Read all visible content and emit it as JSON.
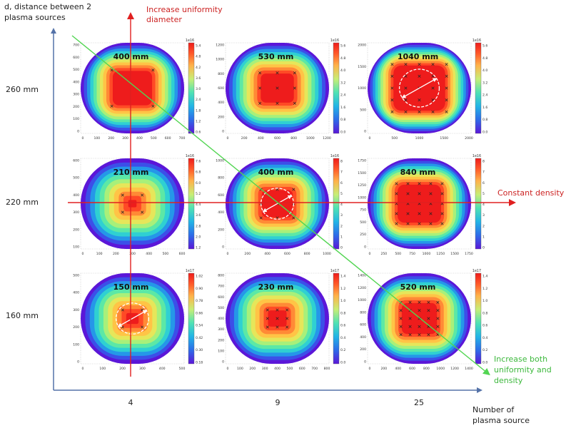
{
  "chart_data": {
    "type": "heatmap",
    "title": "",
    "y_axis_title": "d, distance between 2 plasma sources",
    "y_axis_title_lines": [
      "d, distance between 2",
      "plasma sources"
    ],
    "x_axis_title": "Number of plasma source",
    "x_axis_title_lines": [
      "Number of",
      "plasma source"
    ],
    "row_labels": [
      "260 mm",
      "220 mm",
      "160 mm"
    ],
    "col_labels": [
      "4",
      "9",
      "25"
    ],
    "annotations": {
      "vertical": [
        "Increase uniformity",
        "diameter"
      ],
      "horizontal": "Constant density",
      "diagonal": [
        "Increase both",
        "uniformity and",
        "density"
      ]
    },
    "colors": {
      "axis_blue": "#5472a8",
      "arrow_red": "#e02020",
      "arrow_green": "#52d552",
      "label_red": "#cc2222",
      "label_green": "#3cb83c"
    },
    "panels": [
      {
        "row": 0,
        "col": 0,
        "n_sources": 4,
        "d": "260 mm",
        "uniformity_diameter": "400 mm",
        "axis_max": 700,
        "x_ticks": [
          "0",
          "100",
          "200",
          "300",
          "400",
          "500",
          "600",
          "700"
        ],
        "y_ticks": [
          "0",
          "100",
          "200",
          "300",
          "400",
          "500",
          "600",
          "700"
        ],
        "cbar_exp": "1e16",
        "cbar_ticks": [
          "0.6",
          "1.2",
          "1.8",
          "2.4",
          "3.0",
          "3.6",
          "4.2",
          "4.8",
          "5.4"
        ],
        "dashed_circle": false
      },
      {
        "row": 0,
        "col": 1,
        "n_sources": 9,
        "d": "260 mm",
        "uniformity_diameter": "530 mm",
        "axis_max": 1200,
        "x_ticks": [
          "0",
          "200",
          "400",
          "600",
          "800",
          "1000",
          "1200"
        ],
        "y_ticks": [
          "0",
          "200",
          "400",
          "600",
          "800",
          "1000",
          "1200"
        ],
        "cbar_exp": "1e16",
        "cbar_ticks": [
          "0.0",
          "0.8",
          "1.6",
          "2.4",
          "3.2",
          "4.0",
          "4.8",
          "5.6"
        ],
        "dashed_circle": false
      },
      {
        "row": 0,
        "col": 2,
        "n_sources": 25,
        "d": "260 mm",
        "uniformity_diameter": "1040 mm",
        "axis_max": 2000,
        "x_ticks": [
          "0",
          "500",
          "1000",
          "1500",
          "2000"
        ],
        "y_ticks": [
          "0",
          "500",
          "1000",
          "1500",
          "2000"
        ],
        "cbar_exp": "1e16",
        "cbar_ticks": [
          "0.0",
          "0.8",
          "1.6",
          "2.4",
          "3.2",
          "4.0",
          "4.8",
          "5.6"
        ],
        "dashed_circle": true
      },
      {
        "row": 1,
        "col": 0,
        "n_sources": 4,
        "d": "220 mm",
        "uniformity_diameter": "210 mm",
        "axis_max": 600,
        "x_ticks": [
          "0",
          "100",
          "200",
          "300",
          "400",
          "500",
          "600"
        ],
        "y_ticks": [
          "100",
          "200",
          "300",
          "400",
          "500",
          "600"
        ],
        "cbar_exp": "1e16",
        "cbar_ticks": [
          "1.2",
          "2.0",
          "2.8",
          "3.6",
          "4.4",
          "5.2",
          "6.0",
          "6.8",
          "7.6"
        ],
        "dashed_circle": false
      },
      {
        "row": 1,
        "col": 1,
        "n_sources": 9,
        "d": "220 mm",
        "uniformity_diameter": "400 mm",
        "axis_max": 1000,
        "x_ticks": [
          "0",
          "200",
          "400",
          "600",
          "800",
          "1000"
        ],
        "y_ticks": [
          "0",
          "200",
          "400",
          "600",
          "800",
          "1000"
        ],
        "cbar_exp": "1e16",
        "cbar_ticks": [
          "0",
          "1",
          "2",
          "3",
          "4",
          "5",
          "6",
          "7",
          "8"
        ],
        "dashed_circle": true
      },
      {
        "row": 1,
        "col": 2,
        "n_sources": 25,
        "d": "220 mm",
        "uniformity_diameter": "840 mm",
        "axis_max": 1750,
        "x_ticks": [
          "0",
          "250",
          "500",
          "750",
          "1000",
          "1250",
          "1500",
          "1750"
        ],
        "y_ticks": [
          "0",
          "250",
          "500",
          "750",
          "1000",
          "1250",
          "1500",
          "1750"
        ],
        "cbar_exp": "1e16",
        "cbar_ticks": [
          "0",
          "1",
          "2",
          "3",
          "4",
          "5",
          "6",
          "7",
          "8"
        ],
        "dashed_circle": false
      },
      {
        "row": 2,
        "col": 0,
        "n_sources": 4,
        "d": "160 mm",
        "uniformity_diameter": "150 mm",
        "axis_max": 500,
        "x_ticks": [
          "0",
          "100",
          "200",
          "300",
          "400",
          "500"
        ],
        "y_ticks": [
          "0",
          "100",
          "200",
          "300",
          "400",
          "500"
        ],
        "cbar_exp": "1e17",
        "cbar_ticks": [
          "0.18",
          "0.30",
          "0.42",
          "0.54",
          "0.66",
          "0.78",
          "0.90",
          "1.02"
        ],
        "dashed_circle": true
      },
      {
        "row": 2,
        "col": 1,
        "n_sources": 9,
        "d": "160 mm",
        "uniformity_diameter": "230 mm",
        "axis_max": 800,
        "x_ticks": [
          "0",
          "100",
          "200",
          "300",
          "400",
          "500",
          "600",
          "700",
          "800"
        ],
        "y_ticks": [
          "0",
          "100",
          "200",
          "300",
          "400",
          "500",
          "600",
          "700",
          "800"
        ],
        "cbar_exp": "1e17",
        "cbar_ticks": [
          "0.0",
          "0.2",
          "0.4",
          "0.6",
          "0.8",
          "1.0",
          "1.2",
          "1.4"
        ],
        "dashed_circle": false
      },
      {
        "row": 2,
        "col": 2,
        "n_sources": 25,
        "d": "160 mm",
        "uniformity_diameter": "520 mm",
        "axis_max": 1400,
        "x_ticks": [
          "0",
          "200",
          "400",
          "600",
          "800",
          "1000",
          "1200",
          "1400"
        ],
        "y_ticks": [
          "0",
          "200",
          "400",
          "600",
          "800",
          "1000",
          "1200",
          "1400"
        ],
        "cbar_exp": "1e17",
        "cbar_ticks": [
          "0.0",
          "0.2",
          "0.4",
          "0.6",
          "0.8",
          "1.0",
          "1.2",
          "1.4"
        ],
        "dashed_circle": false
      }
    ]
  }
}
